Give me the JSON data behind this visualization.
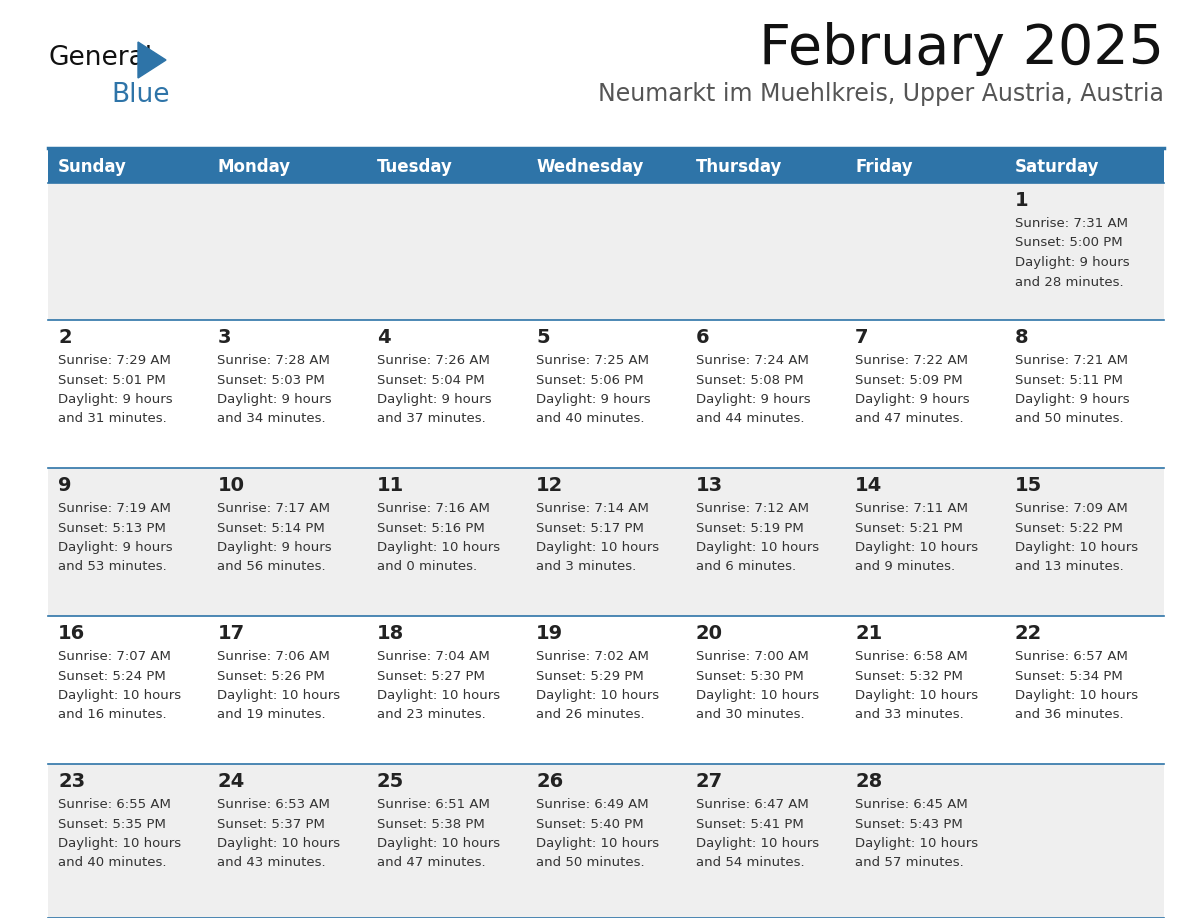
{
  "title": "February 2025",
  "subtitle": "Neumarkt im Muehlkreis, Upper Austria, Austria",
  "days_of_week": [
    "Sunday",
    "Monday",
    "Tuesday",
    "Wednesday",
    "Thursday",
    "Friday",
    "Saturday"
  ],
  "header_bg": "#2E74A8",
  "header_text": "#FFFFFF",
  "row0_bg": "#EFEFEF",
  "row1_bg": "#FFFFFF",
  "row2_bg": "#EFEFEF",
  "row3_bg": "#FFFFFF",
  "row4_bg": "#EFEFEF",
  "line_color": "#2E74A8",
  "day_number_color": "#222222",
  "cell_text_color": "#333333",
  "title_color": "#111111",
  "subtitle_color": "#555555",
  "logo_general_color": "#111111",
  "logo_blue_color": "#2E74A8",
  "calendar_data": [
    [
      null,
      null,
      null,
      null,
      null,
      null,
      {
        "day": "1",
        "sunrise": "7:31 AM",
        "sunset": "5:00 PM",
        "daylight_h": "9 hours",
        "daylight_m": "and 28 minutes."
      }
    ],
    [
      {
        "day": "2",
        "sunrise": "7:29 AM",
        "sunset": "5:01 PM",
        "daylight_h": "9 hours",
        "daylight_m": "and 31 minutes."
      },
      {
        "day": "3",
        "sunrise": "7:28 AM",
        "sunset": "5:03 PM",
        "daylight_h": "9 hours",
        "daylight_m": "and 34 minutes."
      },
      {
        "day": "4",
        "sunrise": "7:26 AM",
        "sunset": "5:04 PM",
        "daylight_h": "9 hours",
        "daylight_m": "and 37 minutes."
      },
      {
        "day": "5",
        "sunrise": "7:25 AM",
        "sunset": "5:06 PM",
        "daylight_h": "9 hours",
        "daylight_m": "and 40 minutes."
      },
      {
        "day": "6",
        "sunrise": "7:24 AM",
        "sunset": "5:08 PM",
        "daylight_h": "9 hours",
        "daylight_m": "and 44 minutes."
      },
      {
        "day": "7",
        "sunrise": "7:22 AM",
        "sunset": "5:09 PM",
        "daylight_h": "9 hours",
        "daylight_m": "and 47 minutes."
      },
      {
        "day": "8",
        "sunrise": "7:21 AM",
        "sunset": "5:11 PM",
        "daylight_h": "9 hours",
        "daylight_m": "and 50 minutes."
      }
    ],
    [
      {
        "day": "9",
        "sunrise": "7:19 AM",
        "sunset": "5:13 PM",
        "daylight_h": "9 hours",
        "daylight_m": "and 53 minutes."
      },
      {
        "day": "10",
        "sunrise": "7:17 AM",
        "sunset": "5:14 PM",
        "daylight_h": "9 hours",
        "daylight_m": "and 56 minutes."
      },
      {
        "day": "11",
        "sunrise": "7:16 AM",
        "sunset": "5:16 PM",
        "daylight_h": "10 hours",
        "daylight_m": "and 0 minutes."
      },
      {
        "day": "12",
        "sunrise": "7:14 AM",
        "sunset": "5:17 PM",
        "daylight_h": "10 hours",
        "daylight_m": "and 3 minutes."
      },
      {
        "day": "13",
        "sunrise": "7:12 AM",
        "sunset": "5:19 PM",
        "daylight_h": "10 hours",
        "daylight_m": "and 6 minutes."
      },
      {
        "day": "14",
        "sunrise": "7:11 AM",
        "sunset": "5:21 PM",
        "daylight_h": "10 hours",
        "daylight_m": "and 9 minutes."
      },
      {
        "day": "15",
        "sunrise": "7:09 AM",
        "sunset": "5:22 PM",
        "daylight_h": "10 hours",
        "daylight_m": "and 13 minutes."
      }
    ],
    [
      {
        "day": "16",
        "sunrise": "7:07 AM",
        "sunset": "5:24 PM",
        "daylight_h": "10 hours",
        "daylight_m": "and 16 minutes."
      },
      {
        "day": "17",
        "sunrise": "7:06 AM",
        "sunset": "5:26 PM",
        "daylight_h": "10 hours",
        "daylight_m": "and 19 minutes."
      },
      {
        "day": "18",
        "sunrise": "7:04 AM",
        "sunset": "5:27 PM",
        "daylight_h": "10 hours",
        "daylight_m": "and 23 minutes."
      },
      {
        "day": "19",
        "sunrise": "7:02 AM",
        "sunset": "5:29 PM",
        "daylight_h": "10 hours",
        "daylight_m": "and 26 minutes."
      },
      {
        "day": "20",
        "sunrise": "7:00 AM",
        "sunset": "5:30 PM",
        "daylight_h": "10 hours",
        "daylight_m": "and 30 minutes."
      },
      {
        "day": "21",
        "sunrise": "6:58 AM",
        "sunset": "5:32 PM",
        "daylight_h": "10 hours",
        "daylight_m": "and 33 minutes."
      },
      {
        "day": "22",
        "sunrise": "6:57 AM",
        "sunset": "5:34 PM",
        "daylight_h": "10 hours",
        "daylight_m": "and 36 minutes."
      }
    ],
    [
      {
        "day": "23",
        "sunrise": "6:55 AM",
        "sunset": "5:35 PM",
        "daylight_h": "10 hours",
        "daylight_m": "and 40 minutes."
      },
      {
        "day": "24",
        "sunrise": "6:53 AM",
        "sunset": "5:37 PM",
        "daylight_h": "10 hours",
        "daylight_m": "and 43 minutes."
      },
      {
        "day": "25",
        "sunrise": "6:51 AM",
        "sunset": "5:38 PM",
        "daylight_h": "10 hours",
        "daylight_m": "and 47 minutes."
      },
      {
        "day": "26",
        "sunrise": "6:49 AM",
        "sunset": "5:40 PM",
        "daylight_h": "10 hours",
        "daylight_m": "and 50 minutes."
      },
      {
        "day": "27",
        "sunrise": "6:47 AM",
        "sunset": "5:41 PM",
        "daylight_h": "10 hours",
        "daylight_m": "and 54 minutes."
      },
      {
        "day": "28",
        "sunrise": "6:45 AM",
        "sunset": "5:43 PM",
        "daylight_h": "10 hours",
        "daylight_m": "and 57 minutes."
      },
      null
    ]
  ]
}
